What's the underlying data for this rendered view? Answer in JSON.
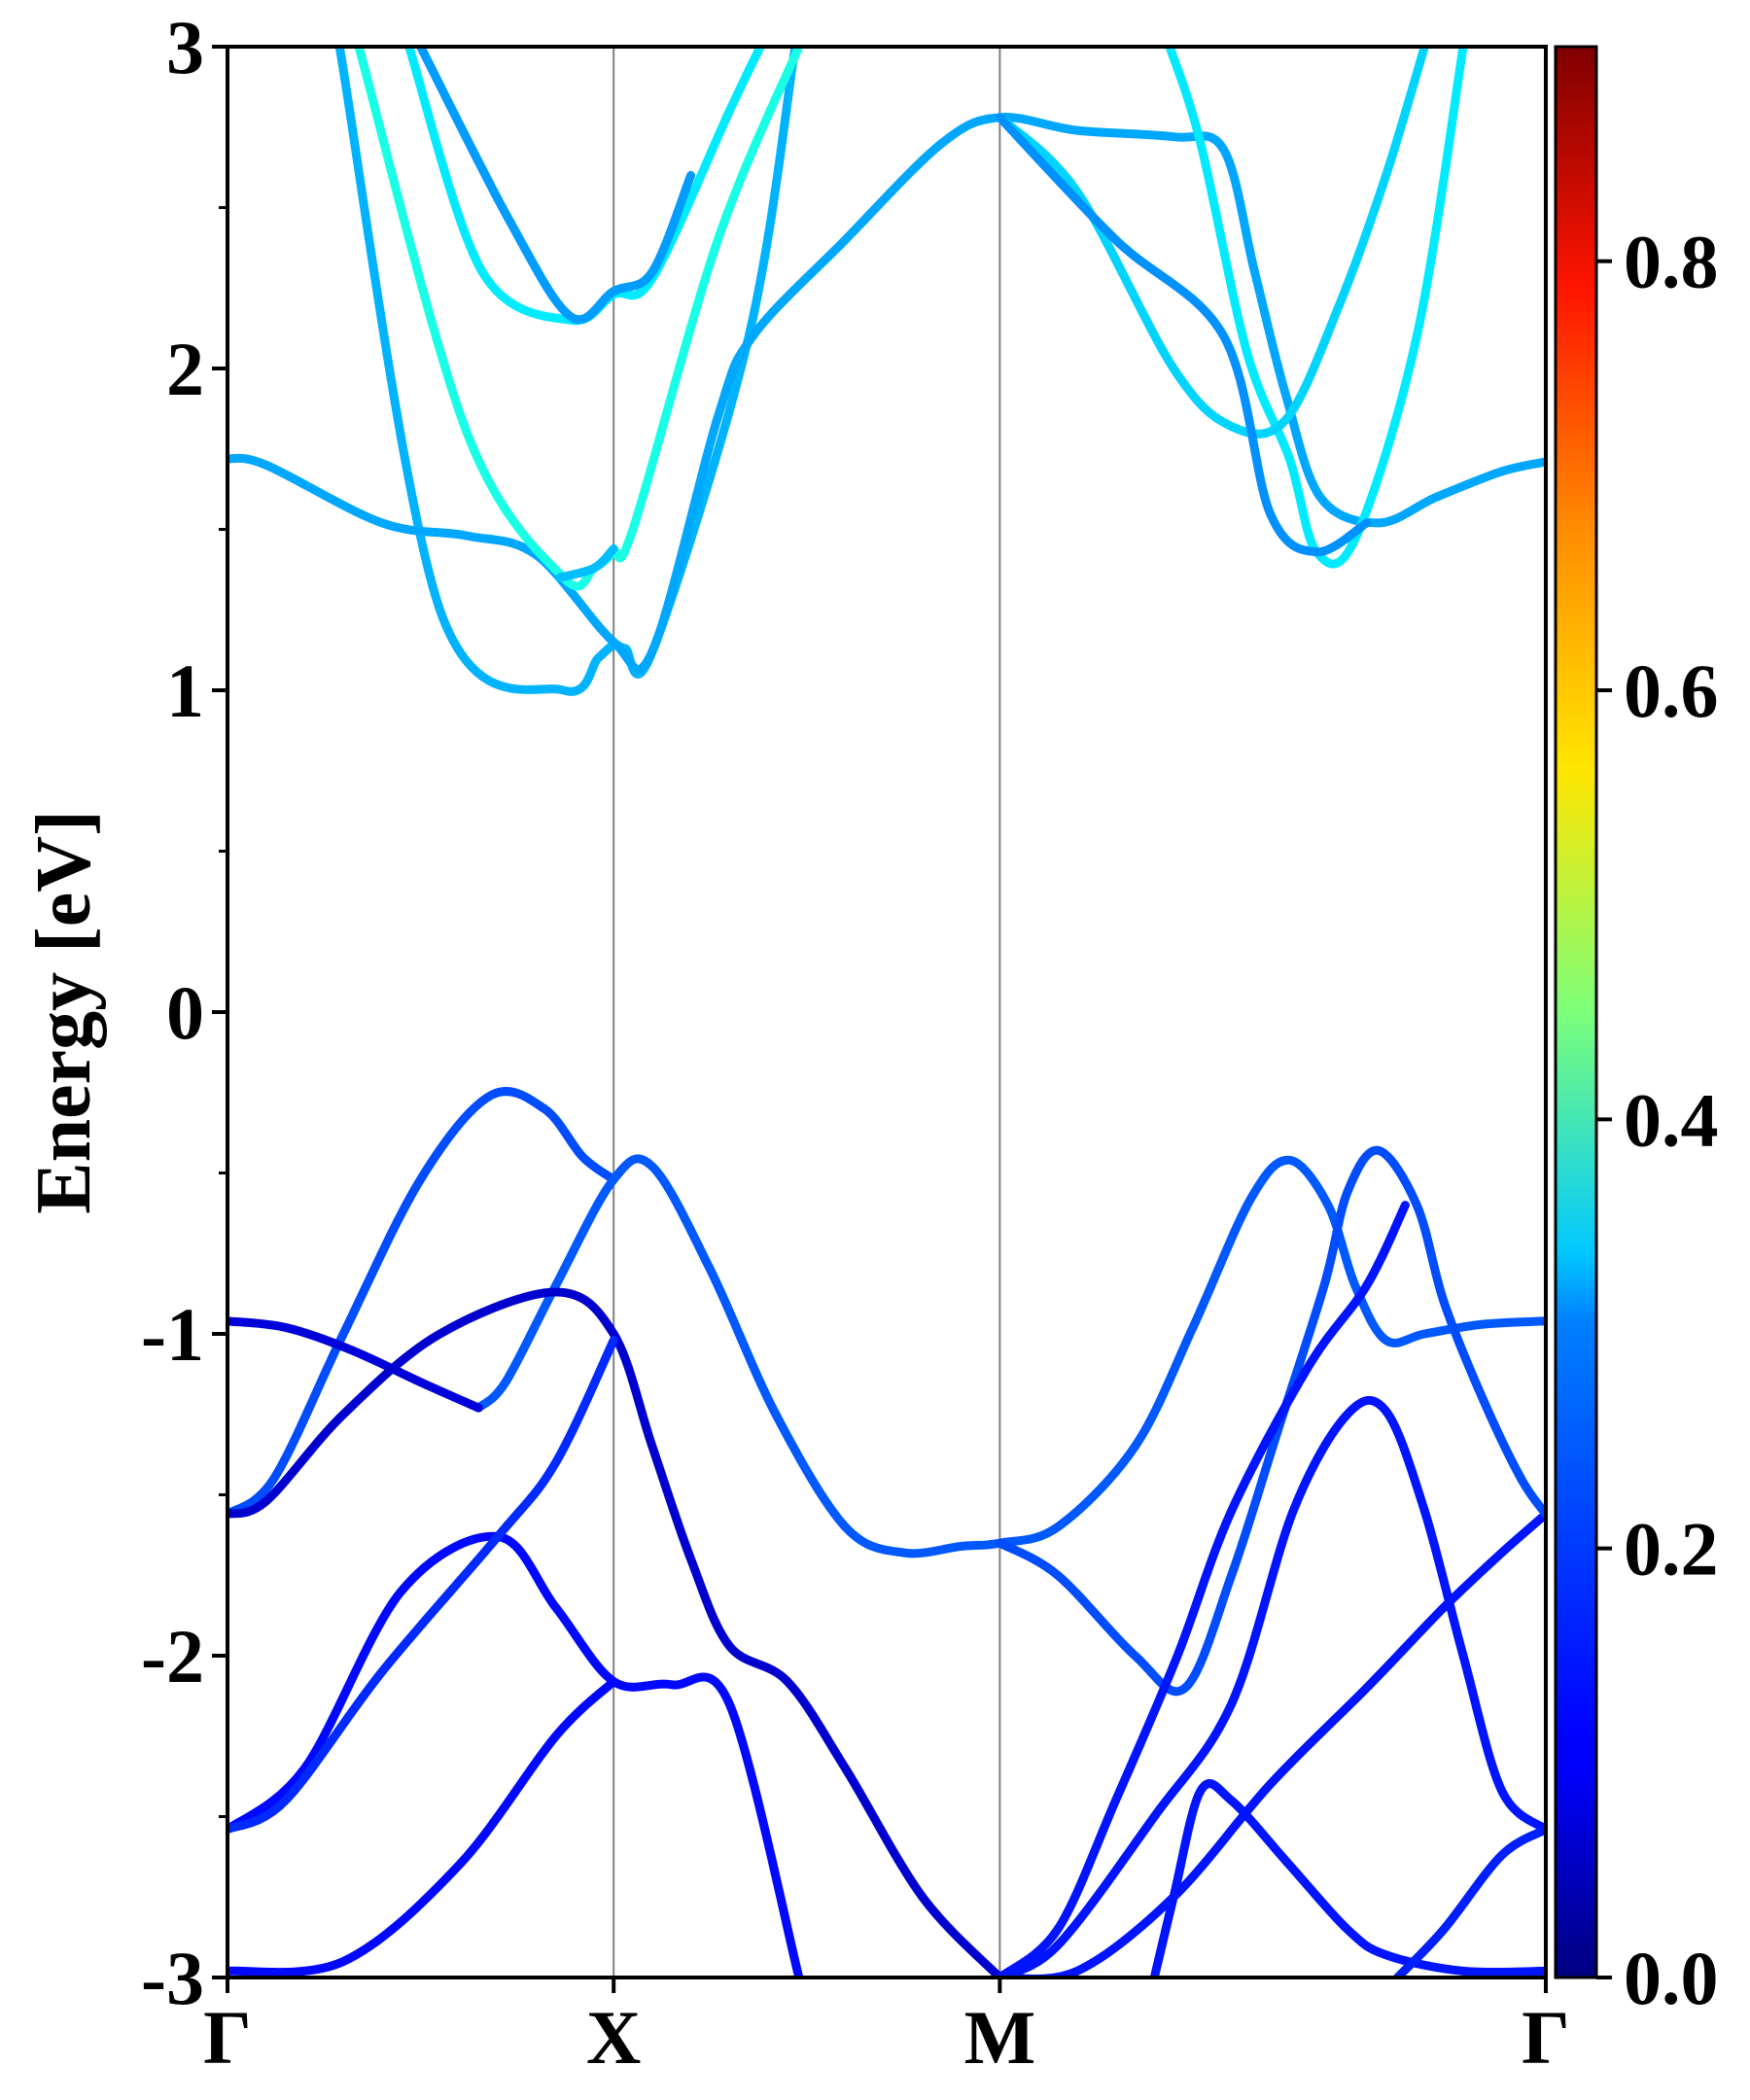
{
  "chart_data": {
    "type": "line",
    "title": "",
    "xlabel": "",
    "ylabel": "Energy [eV]",
    "ylim": [
      -3,
      3
    ],
    "yticks": [
      "-3",
      "-2",
      "-1",
      "0",
      "1",
      "2",
      "3"
    ],
    "ytick_values": [
      -3,
      -2,
      -1,
      0,
      1,
      2,
      3
    ],
    "kpoints": [
      {
        "label": "Γ",
        "x": 0
      },
      {
        "label": "X",
        "x": 1
      },
      {
        "label": "M",
        "x": 2
      },
      {
        "label": "Γ",
        "x": 3.414
      }
    ],
    "xlim": [
      0,
      3.414
    ],
    "colorbar": {
      "colormap": "jet",
      "range": [
        0,
        0.9
      ],
      "ticks": [
        "0.0",
        "0.2",
        "0.4",
        "0.6",
        "0.8"
      ],
      "tick_values": [
        0,
        0.2,
        0.4,
        0.6,
        0.8
      ]
    },
    "series": [
      {
        "weight": 0.27,
        "points": [
          [
            0.29,
            3
          ],
          [
            0.55,
            1.25
          ],
          [
            0.87,
            1.0
          ],
          [
            0.96,
            1.1
          ],
          [
            1.0,
            1.14
          ],
          [
            1.03,
            1.13
          ],
          [
            1.1,
            1.12
          ],
          [
            1.35,
            2.1
          ],
          [
            1.47,
            3
          ]
        ]
      },
      {
        "weight": 0.26,
        "points": [
          [
            0,
            1.72
          ],
          [
            0.1,
            1.7
          ],
          [
            0.4,
            1.52
          ],
          [
            0.62,
            1.48
          ],
          [
            0.8,
            1.42
          ],
          [
            1.0,
            1.15
          ],
          [
            1.1,
            1.12
          ],
          [
            1.27,
            1.85
          ],
          [
            1.36,
            2.1
          ],
          [
            1.6,
            2.4
          ],
          [
            1.85,
            2.7
          ],
          [
            2.0,
            2.78
          ],
          [
            2.2,
            2.74
          ],
          [
            2.45,
            2.72
          ],
          [
            2.58,
            2.68
          ],
          [
            2.66,
            2.3
          ],
          [
            2.74,
            1.92
          ],
          [
            2.83,
            1.6
          ],
          [
            2.98,
            1.52
          ],
          [
            3.13,
            1.6
          ],
          [
            3.3,
            1.68
          ],
          [
            3.414,
            1.71
          ]
        ]
      },
      {
        "weight": 0.36,
        "points": [
          [
            0.34,
            3
          ],
          [
            0.62,
            1.8
          ],
          [
            0.87,
            1.35
          ],
          [
            0.95,
            1.38
          ],
          [
            1.0,
            1.43
          ],
          [
            1.05,
            1.5
          ],
          [
            1.27,
            2.4
          ],
          [
            1.48,
            3
          ]
        ]
      },
      {
        "weight": 0.32,
        "points": [
          [
            0.47,
            3
          ],
          [
            0.66,
            2.3
          ],
          [
            0.89,
            2.15
          ],
          [
            1.0,
            2.23
          ],
          [
            1.1,
            2.28
          ],
          [
            1.3,
            2.8
          ],
          [
            1.38,
            3
          ]
        ]
      },
      {
        "weight": 0.25,
        "points": [
          [
            0.5,
            3
          ],
          [
            0.73,
            2.46
          ],
          [
            0.89,
            2.16
          ],
          [
            1.0,
            2.24
          ],
          [
            1.1,
            2.3
          ],
          [
            1.2,
            2.6
          ]
        ]
      },
      {
        "weight": 0.28,
        "points": [
          [
            0.86,
            1.35
          ],
          [
            0.95,
            1.38
          ],
          [
            1.0,
            1.44
          ]
        ]
      },
      {
        "weight": 0.32,
        "points": [
          [
            2.44,
            3
          ],
          [
            2.52,
            2.7
          ],
          [
            2.64,
            2.05
          ],
          [
            2.75,
            1.72
          ],
          [
            2.82,
            1.43
          ],
          [
            2.92,
            1.47
          ],
          [
            3.08,
            2.1
          ],
          [
            3.2,
            3
          ]
        ]
      },
      {
        "weight": 0.3,
        "points": [
          [
            2.0,
            2.78
          ],
          [
            2.2,
            2.55
          ],
          [
            2.45,
            2.0
          ],
          [
            2.6,
            1.82
          ],
          [
            2.74,
            1.84
          ],
          [
            2.88,
            2.2
          ],
          [
            3.0,
            2.6
          ],
          [
            3.1,
            3
          ]
        ]
      },
      {
        "weight": 0.24,
        "points": [
          [
            2.0,
            2.78
          ],
          [
            2.3,
            2.4
          ],
          [
            2.58,
            2.1
          ],
          [
            2.7,
            1.55
          ],
          [
            2.82,
            1.43
          ],
          [
            2.95,
            1.52
          ]
        ]
      },
      {
        "weight": 0.18,
        "points": [
          [
            0,
            -1.56
          ],
          [
            0.12,
            -1.45
          ],
          [
            0.3,
            -1.0
          ],
          [
            0.5,
            -0.52
          ],
          [
            0.68,
            -0.26
          ],
          [
            0.82,
            -0.3
          ],
          [
            0.92,
            -0.45
          ],
          [
            1.0,
            -0.52
          ]
        ]
      },
      {
        "weight": 0.19,
        "points": [
          [
            0.65,
            -1.23
          ],
          [
            0.72,
            -1.15
          ],
          [
            0.85,
            -0.85
          ],
          [
            1.0,
            -0.52
          ],
          [
            1.1,
            -0.48
          ],
          [
            1.25,
            -0.8
          ],
          [
            1.42,
            -1.25
          ],
          [
            1.6,
            -1.6
          ],
          [
            1.75,
            -1.68
          ],
          [
            1.9,
            -1.66
          ],
          [
            2.0,
            -1.65
          ],
          [
            2.15,
            -1.6
          ],
          [
            2.35,
            -1.35
          ],
          [
            2.5,
            -0.98
          ],
          [
            2.65,
            -0.58
          ],
          [
            2.75,
            -0.46
          ],
          [
            2.85,
            -0.6
          ],
          [
            2.92,
            -0.85
          ],
          [
            3.0,
            -1.02
          ],
          [
            3.1,
            -1.0
          ],
          [
            3.25,
            -0.97
          ],
          [
            3.414,
            -0.96
          ]
        ]
      },
      {
        "weight": 0.08,
        "points": [
          [
            0,
            -0.96
          ],
          [
            0.15,
            -0.98
          ],
          [
            0.32,
            -1.05
          ],
          [
            0.5,
            -1.15
          ],
          [
            0.65,
            -1.23
          ]
        ]
      },
      {
        "weight": 0.07,
        "points": [
          [
            0,
            -1.56
          ],
          [
            0.1,
            -1.52
          ],
          [
            0.3,
            -1.25
          ],
          [
            0.55,
            -1.0
          ],
          [
            0.85,
            -0.87
          ],
          [
            1.0,
            -1.0
          ],
          [
            1.1,
            -1.35
          ],
          [
            1.2,
            -1.7
          ],
          [
            1.3,
            -1.97
          ],
          [
            1.45,
            -2.08
          ],
          [
            1.6,
            -2.35
          ],
          [
            1.8,
            -2.75
          ],
          [
            2.0,
            -3.0
          ]
        ]
      },
      {
        "weight": 0.12,
        "points": [
          [
            0,
            -2.54
          ],
          [
            0.2,
            -2.35
          ],
          [
            0.45,
            -1.8
          ],
          [
            0.7,
            -1.63
          ],
          [
            0.85,
            -1.85
          ],
          [
            1.0,
            -2.08
          ],
          [
            1.15,
            -2.09
          ],
          [
            1.3,
            -2.15
          ],
          [
            1.48,
            -3.0
          ]
        ]
      },
      {
        "weight": 0.15,
        "points": [
          [
            0,
            -2.54
          ],
          [
            0.15,
            -2.45
          ],
          [
            0.4,
            -2.05
          ],
          [
            0.7,
            -1.63
          ],
          [
            0.85,
            -1.4
          ],
          [
            1.0,
            -1.02
          ]
        ]
      },
      {
        "weight": 0.12,
        "points": [
          [
            0,
            -2.98
          ],
          [
            0.3,
            -2.95
          ],
          [
            0.6,
            -2.65
          ],
          [
            0.85,
            -2.25
          ],
          [
            1.0,
            -2.08
          ]
        ]
      },
      {
        "weight": 0.13,
        "points": [
          [
            2.0,
            -3.0
          ],
          [
            2.15,
            -2.9
          ],
          [
            2.4,
            -2.5
          ],
          [
            2.6,
            -2.15
          ],
          [
            2.76,
            -1.55
          ],
          [
            2.9,
            -1.25
          ],
          [
            3.0,
            -1.24
          ],
          [
            3.1,
            -1.55
          ],
          [
            3.2,
            -2.0
          ],
          [
            3.3,
            -2.42
          ],
          [
            3.414,
            -2.54
          ]
        ]
      },
      {
        "weight": 0.13,
        "points": [
          [
            2.0,
            -3.0
          ],
          [
            2.2,
            -2.98
          ],
          [
            2.45,
            -2.75
          ],
          [
            2.7,
            -2.4
          ],
          [
            2.95,
            -2.1
          ],
          [
            3.15,
            -1.85
          ],
          [
            3.3,
            -1.68
          ],
          [
            3.414,
            -1.56
          ]
        ]
      },
      {
        "weight": 0.18,
        "points": [
          [
            2.0,
            -1.65
          ],
          [
            2.15,
            -1.75
          ],
          [
            2.35,
            -2.0
          ],
          [
            2.48,
            -2.1
          ],
          [
            2.6,
            -1.75
          ],
          [
            2.72,
            -1.3
          ],
          [
            2.84,
            -0.85
          ],
          [
            2.9,
            -0.56
          ],
          [
            2.98,
            -0.43
          ],
          [
            3.08,
            -0.6
          ],
          [
            3.15,
            -0.9
          ],
          [
            3.25,
            -1.2
          ],
          [
            3.35,
            -1.45
          ],
          [
            3.414,
            -1.56
          ]
        ]
      },
      {
        "weight": 0.13,
        "points": [
          [
            2.0,
            -3.0
          ],
          [
            2.15,
            -2.85
          ],
          [
            2.3,
            -2.45
          ],
          [
            2.46,
            -2.0
          ],
          [
            2.6,
            -1.55
          ],
          [
            2.8,
            -1.1
          ],
          [
            2.95,
            -0.85
          ],
          [
            3.05,
            -0.6
          ]
        ]
      },
      {
        "weight": 0.13,
        "points": [
          [
            2.4,
            -3.0
          ],
          [
            2.45,
            -2.75
          ],
          [
            2.52,
            -2.42
          ],
          [
            2.6,
            -2.45
          ],
          [
            2.75,
            -2.65
          ],
          [
            2.9,
            -2.85
          ],
          [
            3.0,
            -2.93
          ],
          [
            3.2,
            -2.98
          ],
          [
            3.414,
            -2.98
          ]
        ]
      },
      {
        "weight": 0.14,
        "points": [
          [
            3.03,
            -3.0
          ],
          [
            3.15,
            -2.85
          ],
          [
            3.3,
            -2.62
          ],
          [
            3.414,
            -2.54
          ]
        ]
      }
    ]
  }
}
